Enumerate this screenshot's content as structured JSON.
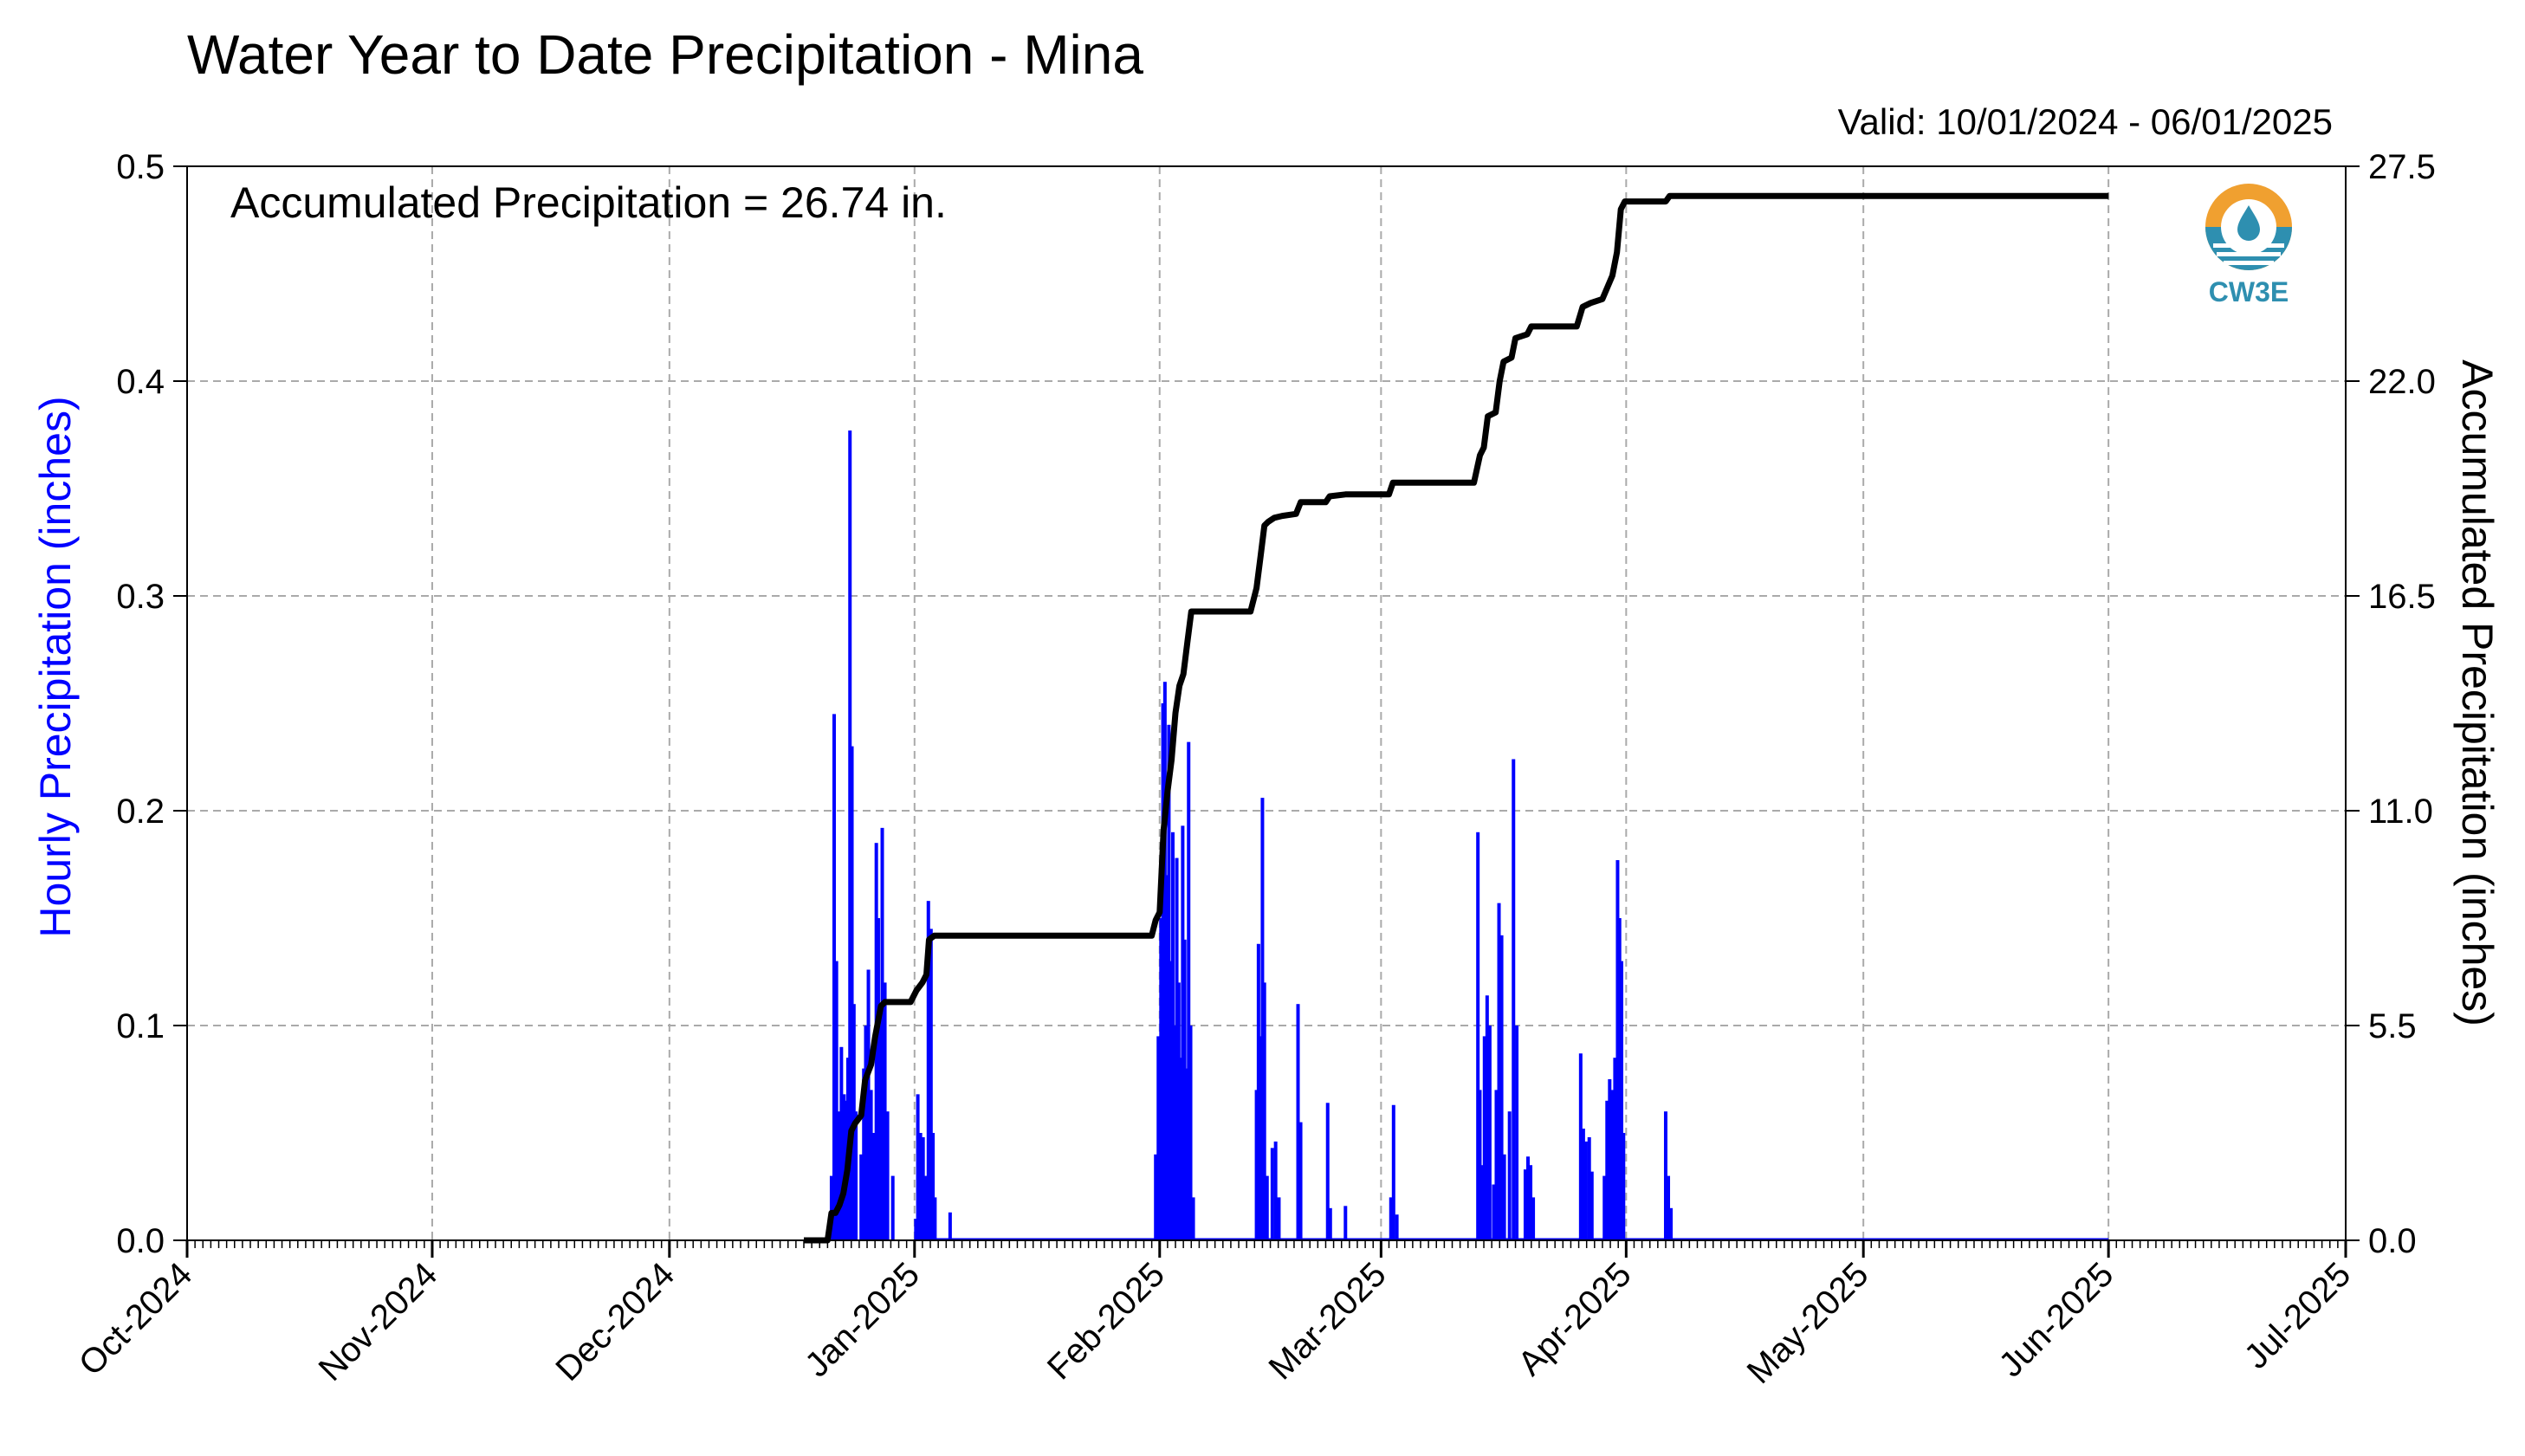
{
  "chart_data": {
    "type": "bar+line",
    "title": "Water Year to Date Precipitation - Mina",
    "valid_text": "Valid: 10/01/2024 - 06/01/2025",
    "annotation": "Accumulated Precipitation = 26.74 in.",
    "ylabel_left": "Hourly Precipitation (inches)",
    "ylabel_right": "Accumulated Precipitation (inches)",
    "ylim_left": [
      0,
      0.5
    ],
    "ylim_right": [
      0,
      27.5
    ],
    "left_ticks": [
      "0.0",
      "0.1",
      "0.2",
      "0.3",
      "0.4",
      "0.5"
    ],
    "right_ticks": [
      "0.0",
      "5.5",
      "11.0",
      "16.5",
      "22.0",
      "27.5"
    ],
    "x_range": [
      "2024-10-01",
      "2025-07-01"
    ],
    "x_ticks": [
      {
        "date": "2024-10-01",
        "label": "Oct-2024"
      },
      {
        "date": "2024-11-01",
        "label": "Nov-2024"
      },
      {
        "date": "2024-12-01",
        "label": "Dec-2024"
      },
      {
        "date": "2025-01-01",
        "label": "Jan-2025"
      },
      {
        "date": "2025-02-01",
        "label": "Feb-2025"
      },
      {
        "date": "2025-03-01",
        "label": "Mar-2025"
      },
      {
        "date": "2025-04-01",
        "label": "Apr-2025"
      },
      {
        "date": "2025-05-01",
        "label": "May-2025"
      },
      {
        "date": "2025-06-01",
        "label": "Jun-2025"
      },
      {
        "date": "2025-07-01",
        "label": "Jul-2025"
      }
    ],
    "grid": true,
    "series": [
      {
        "name": "Hourly Precipitation",
        "type": "bar",
        "axis": "left",
        "color": "#0000ff",
        "points": [
          [
            "2024-12-21T12:00",
            0.03
          ],
          [
            "2024-12-21T20:00",
            0.245
          ],
          [
            "2024-12-22T03:00",
            0.13
          ],
          [
            "2024-12-22T10:00",
            0.06
          ],
          [
            "2024-12-22T18:00",
            0.09
          ],
          [
            "2024-12-23T02:00",
            0.068
          ],
          [
            "2024-12-23T08:00",
            0.065
          ],
          [
            "2024-12-23T14:00",
            0.085
          ],
          [
            "2024-12-23T20:00",
            0.377
          ],
          [
            "2024-12-24T02:00",
            0.23
          ],
          [
            "2024-12-24T08:00",
            0.11
          ],
          [
            "2024-12-24T14:00",
            0.06
          ],
          [
            "2024-12-25T06:00",
            0.04
          ],
          [
            "2024-12-25T14:00",
            0.08
          ],
          [
            "2024-12-25T20:00",
            0.1
          ],
          [
            "2024-12-26T04:00",
            0.126
          ],
          [
            "2024-12-26T12:00",
            0.07
          ],
          [
            "2024-12-26T20:00",
            0.05
          ],
          [
            "2024-12-27T04:00",
            0.185
          ],
          [
            "2024-12-27T10:00",
            0.15
          ],
          [
            "2024-12-27T16:00",
            0.1
          ],
          [
            "2024-12-27T22:00",
            0.192
          ],
          [
            "2024-12-28T06:00",
            0.12
          ],
          [
            "2024-12-28T14:00",
            0.06
          ],
          [
            "2024-12-29T06:00",
            0.03
          ],
          [
            "2025-01-01T04:00",
            0.01
          ],
          [
            "2025-01-01T10:00",
            0.068
          ],
          [
            "2025-01-01T18:00",
            0.05
          ],
          [
            "2025-01-02T02:00",
            0.048
          ],
          [
            "2025-01-02T10:00",
            0.03
          ],
          [
            "2025-01-02T18:00",
            0.158
          ],
          [
            "2025-01-03T02:00",
            0.145
          ],
          [
            "2025-01-03T08:00",
            0.05
          ],
          [
            "2025-01-03T14:00",
            0.02
          ],
          [
            "2025-01-05T12:00",
            0.013
          ],
          [
            "2025-01-31T12:00",
            0.04
          ],
          [
            "2025-01-31T20:00",
            0.095
          ],
          [
            "2025-02-01T04:00",
            0.15
          ],
          [
            "2025-02-01T10:00",
            0.25
          ],
          [
            "2025-02-01T16:00",
            0.26
          ],
          [
            "2025-02-01T22:00",
            0.17
          ],
          [
            "2025-02-02T04:00",
            0.24
          ],
          [
            "2025-02-02T10:00",
            0.13
          ],
          [
            "2025-02-02T16:00",
            0.19
          ],
          [
            "2025-02-02T22:00",
            0.1
          ],
          [
            "2025-02-03T04:00",
            0.178
          ],
          [
            "2025-02-03T10:00",
            0.12
          ],
          [
            "2025-02-03T16:00",
            0.085
          ],
          [
            "2025-02-03T22:00",
            0.193
          ],
          [
            "2025-02-04T04:00",
            0.14
          ],
          [
            "2025-02-04T10:00",
            0.08
          ],
          [
            "2025-02-04T16:00",
            0.232
          ],
          [
            "2025-02-04T22:00",
            0.1
          ],
          [
            "2025-02-05T06:00",
            0.02
          ],
          [
            "2025-02-13T06:00",
            0.07
          ],
          [
            "2025-02-13T12:00",
            0.138
          ],
          [
            "2025-02-13T18:00",
            0.095
          ],
          [
            "2025-02-14T00:00",
            0.206
          ],
          [
            "2025-02-14T06:00",
            0.12
          ],
          [
            "2025-02-14T14:00",
            0.03
          ],
          [
            "2025-02-15T06:00",
            0.043
          ],
          [
            "2025-02-15T16:00",
            0.046
          ],
          [
            "2025-02-16T02:00",
            0.02
          ],
          [
            "2025-02-18T12:00",
            0.11
          ],
          [
            "2025-02-18T20:00",
            0.055
          ],
          [
            "2025-02-22T06:00",
            0.064
          ],
          [
            "2025-02-22T14:00",
            0.015
          ],
          [
            "2025-02-24T12:00",
            0.016
          ],
          [
            "2025-03-02T06:00",
            0.02
          ],
          [
            "2025-03-02T14:00",
            0.063
          ],
          [
            "2025-03-03T00:00",
            0.012
          ],
          [
            "2025-03-13T06:00",
            0.19
          ],
          [
            "2025-03-13T12:00",
            0.07
          ],
          [
            "2025-03-13T18:00",
            0.035
          ],
          [
            "2025-03-14T02:00",
            0.095
          ],
          [
            "2025-03-14T10:00",
            0.114
          ],
          [
            "2025-03-14T18:00",
            0.1
          ],
          [
            "2025-03-15T06:00",
            0.026
          ],
          [
            "2025-03-15T14:00",
            0.07
          ],
          [
            "2025-03-15T22:00",
            0.157
          ],
          [
            "2025-03-16T06:00",
            0.142
          ],
          [
            "2025-03-16T14:00",
            0.04
          ],
          [
            "2025-03-17T06:00",
            0.06
          ],
          [
            "2025-03-17T18:00",
            0.224
          ],
          [
            "2025-03-18T04:00",
            0.1
          ],
          [
            "2025-03-19T06:00",
            0.033
          ],
          [
            "2025-03-19T14:00",
            0.039
          ],
          [
            "2025-03-19T22:00",
            0.035
          ],
          [
            "2025-03-20T06:00",
            0.02
          ],
          [
            "2025-03-26T06:00",
            0.087
          ],
          [
            "2025-03-26T14:00",
            0.052
          ],
          [
            "2025-03-26T22:00",
            0.046
          ],
          [
            "2025-03-27T08:00",
            0.048
          ],
          [
            "2025-03-27T16:00",
            0.032
          ],
          [
            "2025-03-29T06:00",
            0.03
          ],
          [
            "2025-03-29T14:00",
            0.065
          ],
          [
            "2025-03-29T22:00",
            0.075
          ],
          [
            "2025-03-30T06:00",
            0.07
          ],
          [
            "2025-03-30T14:00",
            0.085
          ],
          [
            "2025-03-30T22:00",
            0.177
          ],
          [
            "2025-03-31T04:00",
            0.15
          ],
          [
            "2025-03-31T10:00",
            0.13
          ],
          [
            "2025-03-31T16:00",
            0.05
          ],
          [
            "2025-04-06T00:00",
            0.06
          ],
          [
            "2025-04-06T08:00",
            0.03
          ],
          [
            "2025-04-06T16:00",
            0.015
          ]
        ]
      },
      {
        "name": "Accumulated Precipitation",
        "type": "line",
        "axis": "right",
        "color": "#000000",
        "points": [
          [
            "2024-12-18T00:00",
            0.0
          ],
          [
            "2024-12-21T00:00",
            0.0
          ],
          [
            "2024-12-21T12:00",
            0.7
          ],
          [
            "2024-12-22T00:00",
            0.7
          ],
          [
            "2024-12-22T12:00",
            0.9
          ],
          [
            "2024-12-23T00:00",
            1.2
          ],
          [
            "2024-12-23T12:00",
            1.8
          ],
          [
            "2024-12-24T00:00",
            2.8
          ],
          [
            "2024-12-24T12:00",
            3.0
          ],
          [
            "2024-12-25T06:00",
            3.2
          ],
          [
            "2024-12-25T18:00",
            4.1
          ],
          [
            "2024-12-26T12:00",
            4.5
          ],
          [
            "2024-12-27T00:00",
            5.2
          ],
          [
            "2024-12-27T18:00",
            6.0
          ],
          [
            "2024-12-28T06:00",
            6.1
          ],
          [
            "2024-12-28T18:00",
            6.1
          ],
          [
            "2024-12-31T12:00",
            6.1
          ],
          [
            "2025-01-01T06:00",
            6.4
          ],
          [
            "2025-01-02T00:00",
            6.6
          ],
          [
            "2025-01-02T12:00",
            6.8
          ],
          [
            "2025-01-02T20:00",
            7.7
          ],
          [
            "2025-01-03T12:00",
            7.8
          ],
          [
            "2025-01-05T00:00",
            7.8
          ],
          [
            "2025-01-31T00:00",
            7.8
          ],
          [
            "2025-01-31T12:00",
            8.2
          ],
          [
            "2025-02-01T00:00",
            8.4
          ],
          [
            "2025-02-01T12:00",
            10.5
          ],
          [
            "2025-02-02T00:00",
            11.5
          ],
          [
            "2025-02-02T12:00",
            12.3
          ],
          [
            "2025-02-03T00:00",
            13.5
          ],
          [
            "2025-02-03T12:00",
            14.2
          ],
          [
            "2025-02-04T00:00",
            14.5
          ],
          [
            "2025-02-04T12:00",
            15.3
          ],
          [
            "2025-02-05T00:00",
            16.1
          ],
          [
            "2025-02-05T12:00",
            16.1
          ],
          [
            "2025-02-12T12:00",
            16.1
          ],
          [
            "2025-02-13T06:00",
            16.7
          ],
          [
            "2025-02-13T18:00",
            17.5
          ],
          [
            "2025-02-14T06:00",
            18.3
          ],
          [
            "2025-02-14T18:00",
            18.4
          ],
          [
            "2025-02-15T12:00",
            18.5
          ],
          [
            "2025-02-16T12:00",
            18.55
          ],
          [
            "2025-02-18T06:00",
            18.6
          ],
          [
            "2025-02-18T20:00",
            18.9
          ],
          [
            "2025-02-22T00:00",
            18.9
          ],
          [
            "2025-02-22T12:00",
            19.05
          ],
          [
            "2025-02-24T12:00",
            19.1
          ],
          [
            "2025-03-02T00:00",
            19.1
          ],
          [
            "2025-03-02T12:00",
            19.4
          ],
          [
            "2025-03-12T18:00",
            19.4
          ],
          [
            "2025-03-13T12:00",
            20.1
          ],
          [
            "2025-03-14T00:00",
            20.3
          ],
          [
            "2025-03-14T12:00",
            21.1
          ],
          [
            "2025-03-15T12:00",
            21.2
          ],
          [
            "2025-03-16T00:00",
            22.0
          ],
          [
            "2025-03-16T12:00",
            22.5
          ],
          [
            "2025-03-17T12:00",
            22.6
          ],
          [
            "2025-03-18T00:00",
            23.1
          ],
          [
            "2025-03-19T12:00",
            23.2
          ],
          [
            "2025-03-20T00:00",
            23.4
          ],
          [
            "2025-03-25T18:00",
            23.4
          ],
          [
            "2025-03-26T12:00",
            23.9
          ],
          [
            "2025-03-27T12:00",
            24.0
          ],
          [
            "2025-03-29T00:00",
            24.1
          ],
          [
            "2025-03-30T06:00",
            24.7
          ],
          [
            "2025-03-30T20:00",
            25.3
          ],
          [
            "2025-03-31T08:00",
            26.4
          ],
          [
            "2025-03-31T20:00",
            26.6
          ],
          [
            "2025-04-06T00:00",
            26.6
          ],
          [
            "2025-04-06T12:00",
            26.74
          ],
          [
            "2025-06-01T00:00",
            26.74
          ]
        ]
      }
    ]
  },
  "logo": {
    "text": "CW3E",
    "color_top": "#f0a030",
    "color_bottom": "#2e8fb0"
  }
}
